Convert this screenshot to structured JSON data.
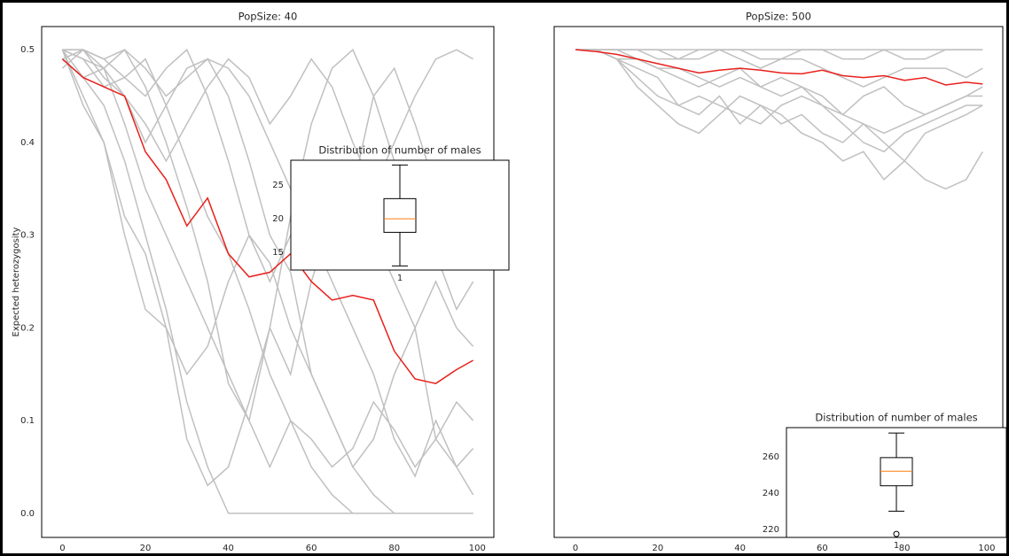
{
  "chart_data": [
    {
      "type": "line",
      "title": "PopSize: 40",
      "ylabel": "Expected heterozygosity",
      "x": [
        0,
        5,
        10,
        15,
        20,
        25,
        30,
        35,
        40,
        45,
        50,
        55,
        60,
        65,
        70,
        75,
        80,
        85,
        90,
        95,
        99
      ],
      "xlim": [
        -5,
        104
      ],
      "ylim": [
        -0.026,
        0.525
      ],
      "xticks": [
        0,
        20,
        40,
        60,
        80,
        100
      ],
      "yticks": [
        {
          "value": 0,
          "label": "0.0"
        },
        0.1,
        0.2,
        0.3,
        0.4,
        0.5
      ],
      "series": [
        {
          "color": "#c0c0c0",
          "values": [
            0.5,
            0.47,
            0.44,
            0.38,
            0.3,
            0.22,
            0.12,
            0.05,
            0,
            0,
            0,
            0,
            0,
            0,
            0,
            0,
            0,
            0,
            0,
            0,
            0
          ]
        },
        {
          "color": "#c0c0c0",
          "values": [
            0.5,
            0.49,
            0.48,
            0.42,
            0.35,
            0.3,
            0.25,
            0.2,
            0.15,
            0.1,
            0.05,
            0.1,
            0.05,
            0.02,
            0,
            0,
            0,
            0,
            0,
            0,
            0
          ]
        },
        {
          "color": "#c0c0c0",
          "values": [
            0.48,
            0.5,
            0.47,
            0.45,
            0.4,
            0.44,
            0.48,
            0.49,
            0.45,
            0.38,
            0.3,
            0.26,
            0.15,
            0.1,
            0.05,
            0.02,
            0,
            0,
            0,
            0,
            0
          ]
        },
        {
          "color": "#c0c0c0",
          "values": [
            0.5,
            0.5,
            0.49,
            0.5,
            0.48,
            0.45,
            0.47,
            0.49,
            0.48,
            0.45,
            0.4,
            0.35,
            0.3,
            0.25,
            0.2,
            0.15,
            0.08,
            0.04,
            0.1,
            0.05,
            0.07
          ]
        },
        {
          "color": "#c0c0c0",
          "values": [
            0.49,
            0.5,
            0.48,
            0.45,
            0.42,
            0.38,
            0.42,
            0.46,
            0.49,
            0.47,
            0.42,
            0.45,
            0.49,
            0.46,
            0.4,
            0.35,
            0.4,
            0.45,
            0.49,
            0.5,
            0.49
          ]
        },
        {
          "color": "#c0c0c0",
          "values": [
            0.5,
            0.45,
            0.4,
            0.32,
            0.28,
            0.2,
            0.15,
            0.18,
            0.25,
            0.3,
            0.27,
            0.2,
            0.15,
            0.1,
            0.05,
            0.08,
            0.15,
            0.2,
            0.25,
            0.2,
            0.18
          ]
        },
        {
          "color": "#c0c0c0",
          "values": [
            0.5,
            0.49,
            0.46,
            0.47,
            0.49,
            0.44,
            0.38,
            0.32,
            0.28,
            0.22,
            0.15,
            0.1,
            0.08,
            0.05,
            0.07,
            0.12,
            0.09,
            0.05,
            0.08,
            0.12,
            0.1
          ]
        },
        {
          "color": "#c0c0c0",
          "values": [
            0.49,
            0.47,
            0.48,
            0.5,
            0.46,
            0.4,
            0.33,
            0.25,
            0.14,
            0.1,
            0.2,
            0.32,
            0.42,
            0.48,
            0.5,
            0.45,
            0.38,
            0.3,
            0.28,
            0.22,
            0.25
          ]
        },
        {
          "color": "#c0c0c0",
          "values": [
            0.5,
            0.5,
            0.49,
            0.47,
            0.45,
            0.48,
            0.5,
            0.45,
            0.38,
            0.3,
            0.25,
            0.3,
            0.35,
            0.3,
            0.35,
            0.45,
            0.48,
            0.42,
            0.35,
            0.3,
            0.28
          ]
        },
        {
          "color": "#c0c0c0",
          "values": [
            0.5,
            0.44,
            0.4,
            0.3,
            0.22,
            0.2,
            0.08,
            0.03,
            0.05,
            0.12,
            0.2,
            0.15,
            0.25,
            0.32,
            0.38,
            0.3,
            0.25,
            0.2,
            0.08,
            0.05,
            0.02
          ]
        },
        {
          "color": "#e8201c",
          "values": [
            0.49,
            0.47,
            0.46,
            0.45,
            0.39,
            0.36,
            0.31,
            0.34,
            0.28,
            0.255,
            0.26,
            0.28,
            0.25,
            0.23,
            0.235,
            0.23,
            0.175,
            0.145,
            0.14,
            0.155,
            0.165
          ]
        }
      ]
    },
    {
      "type": "line",
      "title": "PopSize: 500",
      "x": [
        0,
        5,
        10,
        15,
        20,
        25,
        30,
        35,
        40,
        45,
        50,
        55,
        60,
        65,
        70,
        75,
        80,
        85,
        90,
        95,
        99
      ],
      "xlim": [
        -5.2,
        103.9
      ],
      "ylim": [
        -0.026,
        0.525
      ],
      "xticks": [
        0,
        20,
        40,
        60,
        80,
        100
      ],
      "series": [
        {
          "color": "#c0c0c0",
          "values": [
            0.5,
            0.5,
            0.5,
            0.5,
            0.5,
            0.5,
            0.5,
            0.5,
            0.5,
            0.5,
            0.5,
            0.5,
            0.5,
            0.5,
            0.5,
            0.5,
            0.5,
            0.5,
            0.5,
            0.5,
            0.5
          ]
        },
        {
          "color": "#c0c0c0",
          "values": [
            0.5,
            0.5,
            0.49,
            0.48,
            0.47,
            0.44,
            0.43,
            0.45,
            0.42,
            0.44,
            0.43,
            0.41,
            0.4,
            0.38,
            0.39,
            0.36,
            0.38,
            0.36,
            0.35,
            0.36,
            0.39
          ]
        },
        {
          "color": "#c0c0c0",
          "values": [
            0.5,
            0.5,
            0.49,
            0.46,
            0.44,
            0.42,
            0.41,
            0.43,
            0.45,
            0.44,
            0.42,
            0.43,
            0.41,
            0.4,
            0.42,
            0.4,
            0.38,
            0.41,
            0.42,
            0.43,
            0.44
          ]
        },
        {
          "color": "#c0c0c0",
          "values": [
            0.5,
            0.5,
            0.5,
            0.49,
            0.48,
            0.47,
            0.46,
            0.47,
            0.48,
            0.46,
            0.45,
            0.46,
            0.44,
            0.42,
            0.4,
            0.39,
            0.41,
            0.42,
            0.43,
            0.44,
            0.44
          ]
        },
        {
          "color": "#c0c0c0",
          "values": [
            0.5,
            0.5,
            0.5,
            0.5,
            0.5,
            0.49,
            0.49,
            0.5,
            0.5,
            0.49,
            0.49,
            0.5,
            0.5,
            0.49,
            0.49,
            0.5,
            0.49,
            0.49,
            0.5,
            0.5,
            0.5
          ]
        },
        {
          "color": "#c0c0c0",
          "values": [
            0.5,
            0.5,
            0.49,
            0.49,
            0.48,
            0.48,
            0.47,
            0.46,
            0.47,
            0.46,
            0.47,
            0.46,
            0.45,
            0.43,
            0.45,
            0.46,
            0.44,
            0.43,
            0.44,
            0.45,
            0.45
          ]
        },
        {
          "color": "#c0c0c0",
          "values": [
            0.5,
            0.5,
            0.5,
            0.5,
            0.49,
            0.49,
            0.5,
            0.5,
            0.49,
            0.48,
            0.49,
            0.49,
            0.48,
            0.47,
            0.46,
            0.47,
            0.48,
            0.48,
            0.48,
            0.47,
            0.48
          ]
        },
        {
          "color": "#c0c0c0",
          "values": [
            0.5,
            0.5,
            0.49,
            0.47,
            0.45,
            0.44,
            0.45,
            0.44,
            0.43,
            0.42,
            0.44,
            0.45,
            0.44,
            0.43,
            0.42,
            0.41,
            0.42,
            0.43,
            0.44,
            0.45,
            0.46
          ]
        },
        {
          "color": "#e8201c",
          "values": [
            0.5,
            0.498,
            0.495,
            0.49,
            0.485,
            0.48,
            0.475,
            0.478,
            0.48,
            0.478,
            0.475,
            0.474,
            0.478,
            0.472,
            0.47,
            0.472,
            0.467,
            0.47,
            0.462,
            0.465,
            0.463
          ]
        }
      ]
    },
    {
      "type": "box",
      "title": "Distribution of number of males",
      "categories": [
        "1"
      ],
      "ylim": [
        12.4,
        28.7
      ],
      "yticks": [
        15,
        20,
        25
      ],
      "boxes": [
        {
          "whislo": 13,
          "q1": 18,
          "med": 20,
          "q3": 23,
          "whishi": 28,
          "fliers": []
        }
      ],
      "color": "#000000",
      "median_color": "#ff7f0e"
    },
    {
      "type": "box",
      "title": "Distribution of number of males",
      "categories": [
        "1"
      ],
      "ylim": [
        215.6,
        276
      ],
      "yticks": [
        220,
        240,
        260
      ],
      "boxes": [
        {
          "whislo": 230,
          "q1": 244,
          "med": 252,
          "q3": 259.5,
          "whishi": 273,
          "fliers": [
            217.5
          ]
        }
      ],
      "color": "#000000",
      "median_color": "#ff7f0e"
    }
  ]
}
